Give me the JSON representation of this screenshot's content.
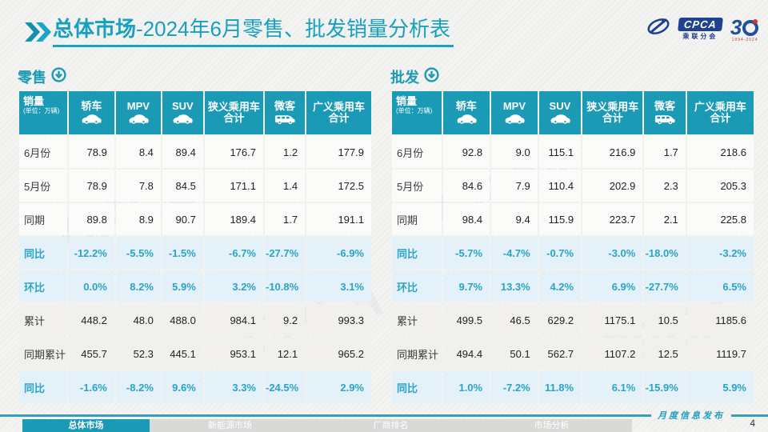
{
  "title": {
    "emphasis": "总体市场",
    "rest": "-2024年6月零售、批发销量分析表"
  },
  "logos": {
    "cpca_acronym": "CPCA",
    "cpca_name": "乘联分会",
    "anniversary_number": "3",
    "anniversary_years": "1994-2024"
  },
  "watermark_text": "CPCA",
  "tables": [
    {
      "section_label": "零售",
      "corner": {
        "title": "销量",
        "sub": "(单位：万辆)"
      },
      "columns": [
        {
          "key": "sedan",
          "lines": [
            "轿车"
          ],
          "icon": "car"
        },
        {
          "key": "mpv",
          "lines": [
            "MPV"
          ],
          "icon": "car"
        },
        {
          "key": "suv",
          "lines": [
            "SUV"
          ],
          "icon": "car"
        },
        {
          "key": "narrow-pv-total",
          "lines": [
            "狭义乘用车",
            "合计"
          ]
        },
        {
          "key": "microvan",
          "lines": [
            "微客"
          ],
          "icon": "van"
        },
        {
          "key": "broad-pv-total",
          "lines": [
            "广义乘用车",
            "合计"
          ]
        }
      ],
      "rows": [
        {
          "label": "6月份",
          "style": "plain",
          "values": [
            "78.9",
            "8.4",
            "89.4",
            "176.7",
            "1.2",
            "177.9"
          ]
        },
        {
          "label": "5月份",
          "style": "plain",
          "values": [
            "78.9",
            "7.8",
            "84.5",
            "171.1",
            "1.4",
            "172.5"
          ]
        },
        {
          "label": "同期",
          "style": "plain",
          "values": [
            "89.8",
            "8.9",
            "90.7",
            "189.4",
            "1.7",
            "191.1"
          ]
        },
        {
          "label": "同比",
          "style": "pct",
          "values": [
            "-12.2%",
            "-5.5%",
            "-1.5%",
            "-6.7%",
            "-27.7%",
            "-6.9%"
          ]
        },
        {
          "label": "环比",
          "style": "pct",
          "values": [
            "0.0%",
            "8.2%",
            "5.9%",
            "3.2%",
            "-10.8%",
            "3.1%"
          ]
        },
        {
          "label": "累计",
          "style": "shade",
          "values": [
            "448.2",
            "48.0",
            "488.0",
            "984.1",
            "9.2",
            "993.3"
          ]
        },
        {
          "label": "同期累计",
          "style": "shade",
          "values": [
            "455.7",
            "52.3",
            "445.1",
            "953.1",
            "12.1",
            "965.2"
          ]
        },
        {
          "label": "同比",
          "style": "pct",
          "values": [
            "-1.6%",
            "-8.2%",
            "9.6%",
            "3.3%",
            "-24.5%",
            "2.9%"
          ]
        }
      ]
    },
    {
      "section_label": "批发",
      "corner": {
        "title": "销量",
        "sub": "(单位：万辆)"
      },
      "columns": [
        {
          "key": "sedan",
          "lines": [
            "轿车"
          ],
          "icon": "car"
        },
        {
          "key": "mpv",
          "lines": [
            "MPV"
          ],
          "icon": "car"
        },
        {
          "key": "suv",
          "lines": [
            "SUV"
          ],
          "icon": "car"
        },
        {
          "key": "narrow-pv-total",
          "lines": [
            "狭义乘用车",
            "合计"
          ]
        },
        {
          "key": "microvan",
          "lines": [
            "微客"
          ],
          "icon": "van"
        },
        {
          "key": "broad-pv-total",
          "lines": [
            "广义乘用车",
            "合计"
          ]
        }
      ],
      "rows": [
        {
          "label": "6月份",
          "style": "plain",
          "values": [
            "92.8",
            "9.0",
            "115.1",
            "216.9",
            "1.7",
            "218.6"
          ]
        },
        {
          "label": "5月份",
          "style": "plain",
          "values": [
            "84.6",
            "7.9",
            "110.4",
            "202.9",
            "2.3",
            "205.3"
          ]
        },
        {
          "label": "同期",
          "style": "plain",
          "values": [
            "98.4",
            "9.4",
            "115.9",
            "223.7",
            "2.1",
            "225.8"
          ]
        },
        {
          "label": "同比",
          "style": "pct",
          "values": [
            "-5.7%",
            "-4.7%",
            "-0.7%",
            "-3.0%",
            "-18.0%",
            "-3.2%"
          ]
        },
        {
          "label": "环比",
          "style": "pct",
          "values": [
            "9.7%",
            "13.3%",
            "4.2%",
            "6.9%",
            "-27.7%",
            "6.5%"
          ]
        },
        {
          "label": "累计",
          "style": "shade",
          "values": [
            "499.5",
            "46.5",
            "629.2",
            "1175.1",
            "10.5",
            "1185.6"
          ]
        },
        {
          "label": "同期累计",
          "style": "shade",
          "values": [
            "494.4",
            "50.1",
            "562.7",
            "1107.2",
            "12.5",
            "1119.7"
          ]
        },
        {
          "label": "同比",
          "style": "pct",
          "values": [
            "1.0%",
            "-7.2%",
            "11.8%",
            "6.1%",
            "-15.9%",
            "5.9%"
          ]
        }
      ]
    }
  ],
  "footer": {
    "tabs": [
      {
        "label": "总体市场",
        "active": true
      },
      {
        "label": "新能源市场",
        "active": false
      },
      {
        "label": "厂商排名",
        "active": false
      },
      {
        "label": "市场分析",
        "active": false
      }
    ],
    "publish_label": "月度信息发布",
    "page_number": "4"
  }
}
